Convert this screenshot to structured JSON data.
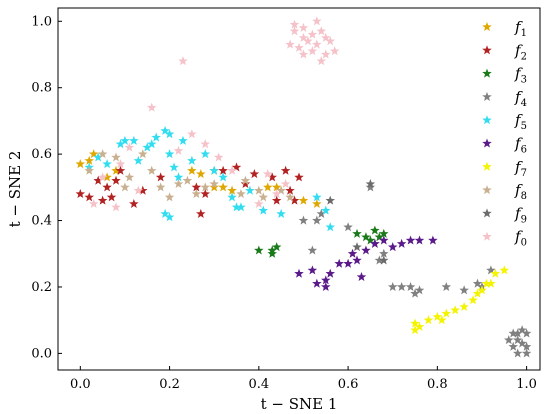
{
  "chart_data": {
    "type": "scatter",
    "xlabel": "t − SNE 1",
    "ylabel": "t − SNE 2",
    "xlim": [
      -0.05,
      1.03
    ],
    "ylim": [
      -0.05,
      1.04
    ],
    "xticks": [
      0.0,
      0.2,
      0.4,
      0.6,
      0.8,
      1.0
    ],
    "yticks": [
      0.0,
      0.2,
      0.4,
      0.6,
      0.8,
      1.0
    ],
    "xtick_labels": [
      "0.0",
      "0.2",
      "0.4",
      "0.6",
      "0.8",
      "1.0"
    ],
    "ytick_labels": [
      "0.0",
      "0.2",
      "0.4",
      "0.6",
      "0.8",
      "1.0"
    ],
    "grid": false,
    "legend_position": "right",
    "marker": "star",
    "series": [
      {
        "name": "f",
        "sub": "1",
        "color": "#dfa800",
        "points": [
          [
            0.0,
            0.57
          ],
          [
            0.02,
            0.58
          ],
          [
            0.03,
            0.6
          ],
          [
            0.06,
            0.53
          ],
          [
            0.08,
            0.55
          ],
          [
            0.25,
            0.55
          ],
          [
            0.27,
            0.54
          ],
          [
            0.3,
            0.5
          ],
          [
            0.32,
            0.5
          ],
          [
            0.34,
            0.49
          ],
          [
            0.3,
            0.55
          ],
          [
            0.42,
            0.5
          ],
          [
            0.44,
            0.5
          ],
          [
            0.5,
            0.46
          ],
          [
            0.53,
            0.45
          ]
        ]
      },
      {
        "name": "f",
        "sub": "2",
        "color": "#b22222",
        "points": [
          [
            0.0,
            0.48
          ],
          [
            0.02,
            0.47
          ],
          [
            0.04,
            0.52
          ],
          [
            0.06,
            0.5
          ],
          [
            0.05,
            0.46
          ],
          [
            0.07,
            0.47
          ],
          [
            0.08,
            0.52
          ],
          [
            0.09,
            0.55
          ],
          [
            0.12,
            0.45
          ],
          [
            0.14,
            0.49
          ],
          [
            0.18,
            0.53
          ],
          [
            0.26,
            0.5
          ],
          [
            0.27,
            0.42
          ],
          [
            0.28,
            0.48
          ],
          [
            0.32,
            0.55
          ],
          [
            0.35,
            0.56
          ],
          [
            0.37,
            0.51
          ],
          [
            0.39,
            0.54
          ],
          [
            0.43,
            0.53
          ],
          [
            0.44,
            0.46
          ],
          [
            0.46,
            0.55
          ],
          [
            0.47,
            0.49
          ],
          [
            0.48,
            0.46
          ],
          [
            0.49,
            0.53
          ]
        ]
      },
      {
        "name": "f",
        "sub": "3",
        "color": "#1a7a1a",
        "points": [
          [
            0.4,
            0.31
          ],
          [
            0.43,
            0.31
          ],
          [
            0.43,
            0.3
          ],
          [
            0.44,
            0.32
          ],
          [
            0.62,
            0.36
          ],
          [
            0.64,
            0.35
          ],
          [
            0.65,
            0.34
          ],
          [
            0.66,
            0.37
          ],
          [
            0.67,
            0.35
          ],
          [
            0.68,
            0.36
          ]
        ]
      },
      {
        "name": "f",
        "sub": "4",
        "color": "#808080",
        "points": [
          [
            0.5,
            0.4
          ],
          [
            0.53,
            0.4
          ],
          [
            0.54,
            0.42
          ],
          [
            0.52,
            0.31
          ],
          [
            0.6,
            0.38
          ],
          [
            0.65,
            0.5
          ],
          [
            0.66,
            0.33
          ],
          [
            0.67,
            0.28
          ],
          [
            0.68,
            0.3
          ],
          [
            0.7,
            0.2
          ],
          [
            0.72,
            0.2
          ],
          [
            0.74,
            0.2
          ],
          [
            0.75,
            0.18
          ],
          [
            0.76,
            0.19
          ],
          [
            0.82,
            0.2
          ],
          [
            0.86,
            0.19
          ],
          [
            0.89,
            0.21
          ],
          [
            0.9,
            0.2
          ],
          [
            0.92,
            0.25
          ],
          [
            0.97,
            0.02
          ],
          [
            0.98,
            0.04
          ],
          [
            0.99,
            0.03
          ],
          [
            1.0,
            0.02
          ],
          [
            0.98,
            0.06
          ],
          [
            0.99,
            0.07
          ],
          [
            1.0,
            0.06
          ],
          [
            0.97,
            0.06
          ],
          [
            0.98,
            0.0
          ],
          [
            1.0,
            0.0
          ],
          [
            0.96,
            0.04
          ]
        ]
      },
      {
        "name": "f",
        "sub": "5",
        "color": "#33ddf0",
        "points": [
          [
            0.02,
            0.56
          ],
          [
            0.04,
            0.59
          ],
          [
            0.06,
            0.57
          ],
          [
            0.09,
            0.63
          ],
          [
            0.1,
            0.64
          ],
          [
            0.12,
            0.64
          ],
          [
            0.13,
            0.58
          ],
          [
            0.15,
            0.62
          ],
          [
            0.16,
            0.63
          ],
          [
            0.17,
            0.65
          ],
          [
            0.19,
            0.67
          ],
          [
            0.2,
            0.66
          ],
          [
            0.2,
            0.6
          ],
          [
            0.21,
            0.56
          ],
          [
            0.22,
            0.53
          ],
          [
            0.23,
            0.64
          ],
          [
            0.25,
            0.58
          ],
          [
            0.28,
            0.6
          ],
          [
            0.3,
            0.55
          ],
          [
            0.32,
            0.53
          ],
          [
            0.34,
            0.47
          ],
          [
            0.35,
            0.44
          ],
          [
            0.36,
            0.44
          ],
          [
            0.38,
            0.49
          ],
          [
            0.41,
            0.43
          ],
          [
            0.45,
            0.42
          ],
          [
            0.53,
            0.47
          ],
          [
            0.55,
            0.43
          ],
          [
            0.56,
            0.38
          ],
          [
            0.19,
            0.42
          ],
          [
            0.2,
            0.41
          ]
        ]
      },
      {
        "name": "f",
        "sub": "6",
        "color": "#5a1a8a",
        "points": [
          [
            0.49,
            0.24
          ],
          [
            0.52,
            0.25
          ],
          [
            0.53,
            0.21
          ],
          [
            0.55,
            0.22
          ],
          [
            0.56,
            0.24
          ],
          [
            0.58,
            0.27
          ],
          [
            0.6,
            0.27
          ],
          [
            0.61,
            0.3
          ],
          [
            0.62,
            0.28
          ],
          [
            0.64,
            0.31
          ],
          [
            0.66,
            0.33
          ],
          [
            0.68,
            0.34
          ],
          [
            0.7,
            0.32
          ],
          [
            0.72,
            0.33
          ],
          [
            0.74,
            0.34
          ],
          [
            0.76,
            0.34
          ],
          [
            0.79,
            0.34
          ],
          [
            0.63,
            0.23
          ],
          [
            0.55,
            0.2
          ]
        ]
      },
      {
        "name": "f",
        "sub": "7",
        "color": "#f4f400",
        "points": [
          [
            0.75,
            0.09
          ],
          [
            0.75,
            0.07
          ],
          [
            0.76,
            0.08
          ],
          [
            0.78,
            0.1
          ],
          [
            0.8,
            0.11
          ],
          [
            0.81,
            0.1
          ],
          [
            0.82,
            0.12
          ],
          [
            0.84,
            0.13
          ],
          [
            0.86,
            0.14
          ],
          [
            0.88,
            0.16
          ],
          [
            0.89,
            0.18
          ],
          [
            0.9,
            0.19
          ],
          [
            0.91,
            0.21
          ],
          [
            0.92,
            0.21
          ],
          [
            0.93,
            0.24
          ],
          [
            0.95,
            0.25
          ]
        ]
      },
      {
        "name": "f",
        "sub": "8",
        "color": "#c8b090",
        "points": [
          [
            0.02,
            0.55
          ],
          [
            0.05,
            0.6
          ],
          [
            0.08,
            0.59
          ],
          [
            0.1,
            0.5
          ],
          [
            0.11,
            0.53
          ],
          [
            0.14,
            0.6
          ],
          [
            0.16,
            0.55
          ],
          [
            0.18,
            0.5
          ],
          [
            0.2,
            0.47
          ],
          [
            0.22,
            0.51
          ],
          [
            0.24,
            0.52
          ],
          [
            0.26,
            0.48
          ],
          [
            0.28,
            0.5
          ],
          [
            0.3,
            0.51
          ],
          [
            0.36,
            0.48
          ],
          [
            0.37,
            0.52
          ],
          [
            0.4,
            0.49
          ],
          [
            0.41,
            0.47
          ],
          [
            0.45,
            0.49
          ],
          [
            0.47,
            0.47
          ]
        ]
      },
      {
        "name": "f",
        "sub": "9",
        "color": "#6b6b6b",
        "points": [
          [
            0.56,
            0.46
          ],
          [
            0.62,
            0.32
          ],
          [
            0.65,
            0.51
          ],
          [
            0.68,
            0.28
          ]
        ]
      },
      {
        "name": "f",
        "sub": "0",
        "color": "#f4c2c8",
        "points": [
          [
            0.48,
            0.97
          ],
          [
            0.5,
            0.98
          ],
          [
            0.52,
            0.96
          ],
          [
            0.5,
            0.95
          ],
          [
            0.53,
            0.93
          ],
          [
            0.54,
            0.97
          ],
          [
            0.55,
            0.95
          ],
          [
            0.56,
            0.94
          ],
          [
            0.49,
            0.92
          ],
          [
            0.5,
            0.9
          ],
          [
            0.52,
            0.91
          ],
          [
            0.54,
            0.88
          ],
          [
            0.51,
            0.94
          ],
          [
            0.47,
            0.93
          ],
          [
            0.48,
            0.99
          ],
          [
            0.53,
            1.0
          ],
          [
            0.55,
            0.9
          ],
          [
            0.57,
            0.91
          ],
          [
            0.05,
            0.53
          ],
          [
            0.09,
            0.57
          ],
          [
            0.11,
            0.62
          ],
          [
            0.22,
            0.61
          ],
          [
            0.16,
            0.74
          ],
          [
            0.23,
            0.88
          ],
          [
            0.25,
            0.66
          ],
          [
            0.28,
            0.63
          ],
          [
            0.34,
            0.55
          ],
          [
            0.4,
            0.45
          ],
          [
            0.42,
            0.54
          ],
          [
            0.44,
            0.48
          ],
          [
            0.46,
            0.51
          ],
          [
            0.31,
            0.59
          ],
          [
            0.03,
            0.45
          ],
          [
            0.08,
            0.44
          ],
          [
            0.13,
            0.49
          ]
        ]
      }
    ]
  }
}
